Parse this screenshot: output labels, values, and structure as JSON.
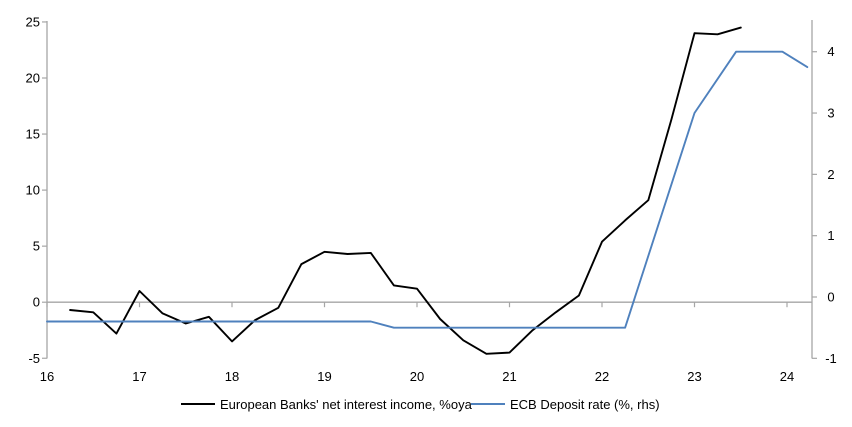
{
  "chart_data": {
    "type": "line",
    "title": "",
    "x_axis": {
      "ticks": [
        16,
        17,
        18,
        19,
        20,
        21,
        22,
        23,
        24
      ],
      "range": [
        16,
        24.27
      ]
    },
    "y_left": {
      "ticks": [
        25,
        20,
        15,
        10,
        5,
        0,
        -5
      ],
      "range": [
        -5,
        25
      ]
    },
    "y_right": {
      "ticks": [
        4,
        3,
        2,
        1,
        0,
        -1
      ],
      "range": [
        -1,
        4.5
      ]
    },
    "grid": "zero-line-only",
    "legend_position": "bottom",
    "axis_color": "#a6a6a6",
    "series": [
      {
        "name": "European Banks' net interest income, %oya",
        "axis": "left",
        "color": "#000000",
        "points": [
          [
            16.25,
            -0.7
          ],
          [
            16.5,
            -0.9
          ],
          [
            16.75,
            -2.8
          ],
          [
            17.0,
            1.0
          ],
          [
            17.25,
            -1.0
          ],
          [
            17.5,
            -1.9
          ],
          [
            17.75,
            -1.3
          ],
          [
            18.0,
            -3.5
          ],
          [
            18.25,
            -1.6
          ],
          [
            18.5,
            -0.5
          ],
          [
            18.75,
            3.4
          ],
          [
            19.0,
            4.5
          ],
          [
            19.25,
            4.3
          ],
          [
            19.5,
            4.4
          ],
          [
            19.75,
            1.5
          ],
          [
            20.0,
            1.2
          ],
          [
            20.25,
            -1.5
          ],
          [
            20.5,
            -3.4
          ],
          [
            20.75,
            -4.6
          ],
          [
            21.0,
            -4.5
          ],
          [
            21.25,
            -2.5
          ],
          [
            21.5,
            -0.9
          ],
          [
            21.75,
            0.6
          ],
          [
            22.0,
            5.4
          ],
          [
            22.25,
            7.3
          ],
          [
            22.5,
            9.1
          ],
          [
            22.75,
            16.3
          ],
          [
            23.0,
            24.0
          ],
          [
            23.25,
            23.9
          ],
          [
            23.5,
            24.5
          ]
        ]
      },
      {
        "name": "ECB Deposit rate (%, rhs)",
        "axis": "right",
        "color": "#4f81bd",
        "points": [
          [
            16.0,
            -0.4
          ],
          [
            19.5,
            -0.4
          ],
          [
            19.75,
            -0.5
          ],
          [
            22.25,
            -0.5
          ],
          [
            23.0,
            3.0
          ],
          [
            23.45,
            4.0
          ],
          [
            23.95,
            4.0
          ],
          [
            24.22,
            3.75
          ]
        ]
      }
    ]
  }
}
